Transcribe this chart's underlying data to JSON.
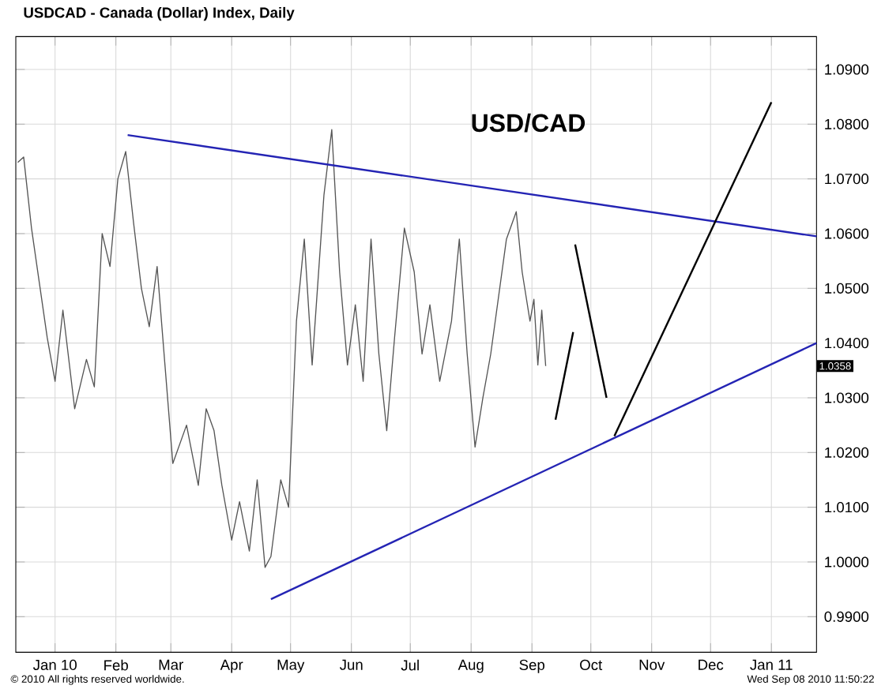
{
  "chart_data": {
    "type": "line",
    "title": "USDCAD - Canada (Dollar) Index, Daily",
    "xlim": [
      "2009-12-12",
      "2011-01-24"
    ],
    "ylim": [
      0.9835,
      1.096
    ],
    "xticks": [
      {
        "value": "2010-01-01",
        "label": "Jan 10"
      },
      {
        "value": "2010-02-01",
        "label": "Feb"
      },
      {
        "value": "2010-03-01",
        "label": "Mar"
      },
      {
        "value": "2010-04-01",
        "label": "Apr"
      },
      {
        "value": "2010-05-01",
        "label": "May"
      },
      {
        "value": "2010-06-01",
        "label": "Jun"
      },
      {
        "value": "2010-07-01",
        "label": "Jul"
      },
      {
        "value": "2010-08-01",
        "label": "Aug"
      },
      {
        "value": "2010-09-01",
        "label": "Sep"
      },
      {
        "value": "2010-10-01",
        "label": "Oct"
      },
      {
        "value": "2010-11-01",
        "label": "Nov"
      },
      {
        "value": "2010-12-01",
        "label": "Dec"
      },
      {
        "value": "2011-01-01",
        "label": "Jan 11"
      }
    ],
    "yticks": [
      {
        "value": 0.99,
        "label": "0.9900"
      },
      {
        "value": 1.0,
        "label": "1.0000"
      },
      {
        "value": 1.01,
        "label": "1.0100"
      },
      {
        "value": 1.02,
        "label": "1.0200"
      },
      {
        "value": 1.03,
        "label": "1.0300"
      },
      {
        "value": 1.04,
        "label": "1.0400"
      },
      {
        "value": 1.05,
        "label": "1.0500"
      },
      {
        "value": 1.06,
        "label": "1.0600"
      },
      {
        "value": 1.07,
        "label": "1.0700"
      },
      {
        "value": 1.08,
        "label": "1.0800"
      },
      {
        "value": 1.09,
        "label": "1.0900"
      }
    ],
    "grid": true,
    "series": [
      {
        "color": "#555555",
        "x": [
          "2009-12-13",
          "2009-12-16",
          "2009-12-20",
          "2009-12-24",
          "2009-12-28",
          "2010-01-01",
          "2010-01-05",
          "2010-01-11",
          "2010-01-17",
          "2010-01-21",
          "2010-01-25",
          "2010-01-29",
          "2010-02-02",
          "2010-02-06",
          "2010-02-10",
          "2010-02-14",
          "2010-02-18",
          "2010-02-22",
          "2010-02-26",
          "2010-03-02",
          "2010-03-09",
          "2010-03-15",
          "2010-03-19",
          "2010-03-23",
          "2010-03-27",
          "2010-04-01",
          "2010-04-05",
          "2010-04-10",
          "2010-04-14",
          "2010-04-18",
          "2010-04-21",
          "2010-04-26",
          "2010-04-30",
          "2010-05-04",
          "2010-05-08",
          "2010-05-12",
          "2010-05-18",
          "2010-05-22",
          "2010-05-26",
          "2010-05-30",
          "2010-06-03",
          "2010-06-07",
          "2010-06-11",
          "2010-06-15",
          "2010-06-19",
          "2010-06-23",
          "2010-06-28",
          "2010-07-03",
          "2010-07-07",
          "2010-07-11",
          "2010-07-16",
          "2010-07-22",
          "2010-07-26",
          "2010-07-30",
          "2010-08-03",
          "2010-08-07",
          "2010-08-11",
          "2010-08-19",
          "2010-08-24",
          "2010-08-27",
          "2010-08-31",
          "2010-09-02",
          "2010-09-04",
          "2010-09-06",
          "2010-09-08"
        ],
        "values": [
          1.073,
          1.074,
          1.061,
          1.051,
          1.041,
          1.033,
          1.046,
          1.028,
          1.037,
          1.032,
          1.06,
          1.054,
          1.07,
          1.075,
          1.062,
          1.05,
          1.043,
          1.054,
          1.036,
          1.018,
          1.025,
          1.014,
          1.028,
          1.024,
          1.014,
          1.004,
          1.011,
          1.002,
          1.015,
          0.999,
          1.001,
          1.015,
          1.01,
          1.044,
          1.059,
          1.036,
          1.067,
          1.079,
          1.053,
          1.036,
          1.047,
          1.033,
          1.059,
          1.038,
          1.024,
          1.041,
          1.061,
          1.053,
          1.038,
          1.047,
          1.033,
          1.044,
          1.059,
          1.038,
          1.021,
          1.03,
          1.038,
          1.059,
          1.064,
          1.053,
          1.044,
          1.048,
          1.036,
          1.046,
          1.0358
        ]
      },
      {
        "color": "#2424b4",
        "x": [
          "2010-02-07",
          "2011-01-24"
        ],
        "values": [
          1.078,
          1.0595
        ]
      },
      {
        "color": "#2424b4",
        "x": [
          "2010-04-21",
          "2011-01-24"
        ],
        "values": [
          0.9932,
          1.04
        ]
      },
      {
        "color": "#000000",
        "x": [
          "2010-09-13",
          "2010-09-22"
        ],
        "values": [
          1.026,
          1.042
        ]
      },
      {
        "color": "#000000",
        "x": [
          "2010-09-23",
          "2010-10-09"
        ],
        "values": [
          1.058,
          1.03
        ]
      },
      {
        "color": "#000000",
        "x": [
          "2010-10-13",
          "2011-01-01"
        ],
        "values": [
          1.023,
          1.084
        ]
      }
    ],
    "annotations": [
      "USD/CAD",
      "© 2010 All rights reserved worldwide.",
      "Wed Sep 08 2010 11:50:22",
      "1.0358"
    ]
  }
}
